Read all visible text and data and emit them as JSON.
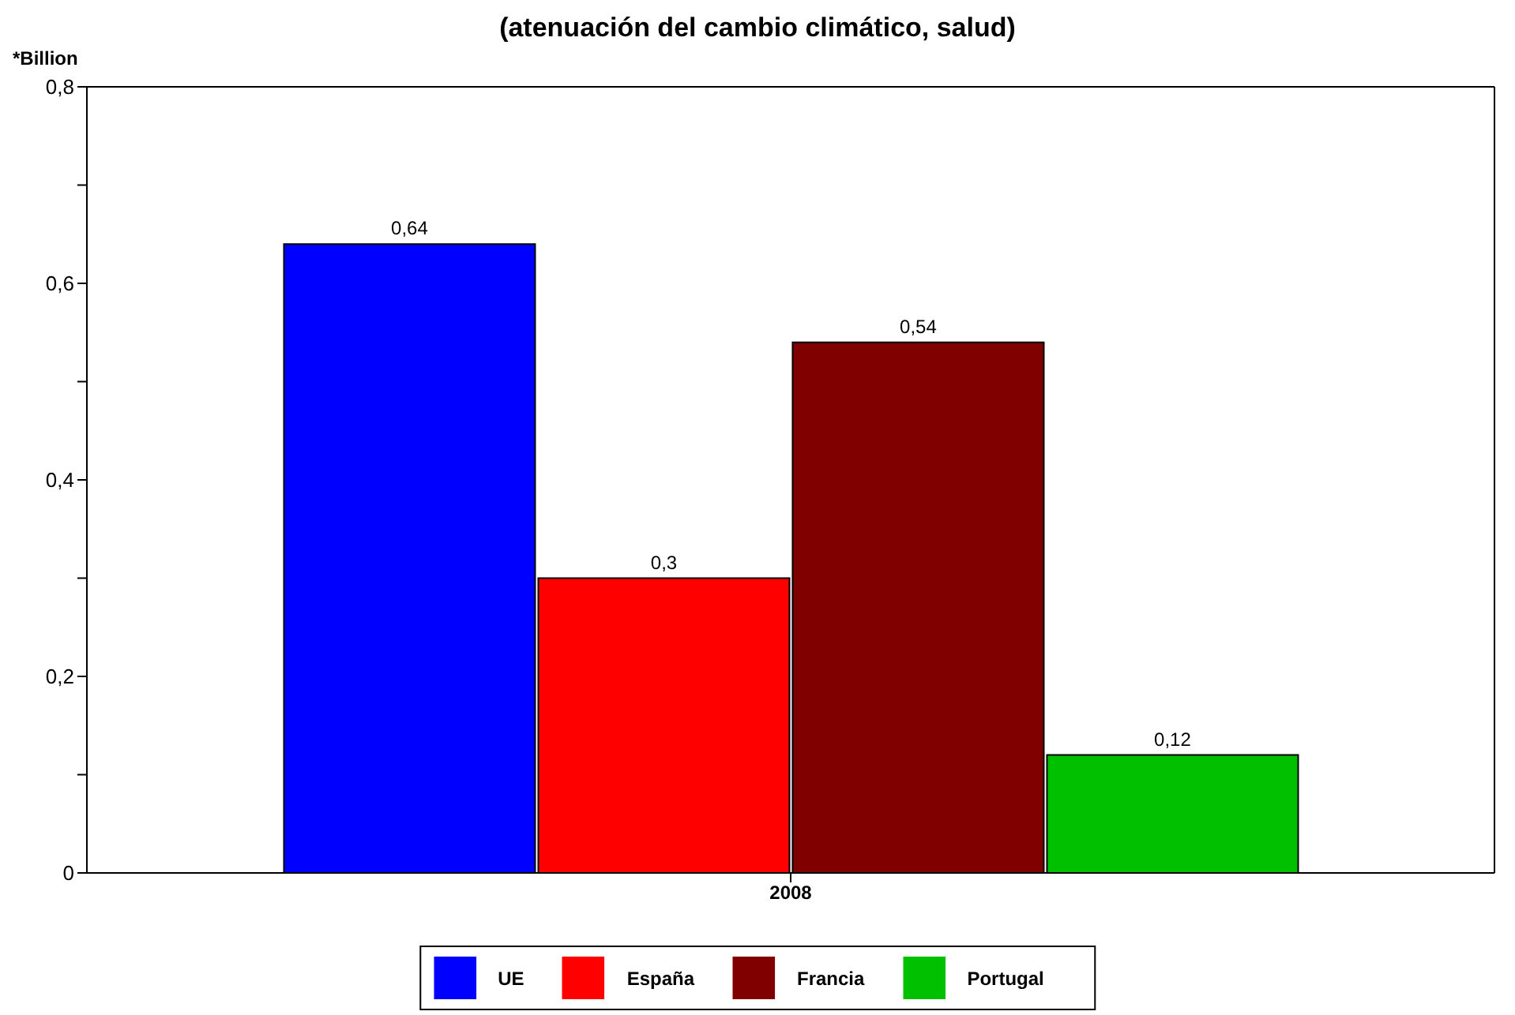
{
  "chart_data": {
    "type": "bar",
    "title": "(atenuación del cambio climático, salud)",
    "ylabel": "*Billion",
    "categories": [
      "2008"
    ],
    "series": [
      {
        "name": "UE",
        "color": "#0000ff",
        "values": [
          0.64
        ],
        "value_labels": [
          "0,64"
        ]
      },
      {
        "name": "España",
        "color": "#ff0000",
        "values": [
          0.3
        ],
        "value_labels": [
          "0,3"
        ]
      },
      {
        "name": "Francia",
        "color": "#800000",
        "values": [
          0.54
        ],
        "value_labels": [
          "0,54"
        ]
      },
      {
        "name": "Portugal",
        "color": "#00c000",
        "values": [
          0.12
        ],
        "value_labels": [
          "0,12"
        ]
      }
    ],
    "ylim": [
      0,
      0.8
    ],
    "yticks": [
      {
        "value": 0,
        "label": "0"
      },
      {
        "value": 0.1,
        "label": null
      },
      {
        "value": 0.2,
        "label": "0,2"
      },
      {
        "value": 0.3,
        "label": null
      },
      {
        "value": 0.4,
        "label": "0,4"
      },
      {
        "value": 0.5,
        "label": null
      },
      {
        "value": 0.6,
        "label": "0,6"
      },
      {
        "value": 0.7,
        "label": null
      },
      {
        "value": 0.8,
        "label": "0,8"
      }
    ],
    "grid": false,
    "legend": "bottom"
  }
}
